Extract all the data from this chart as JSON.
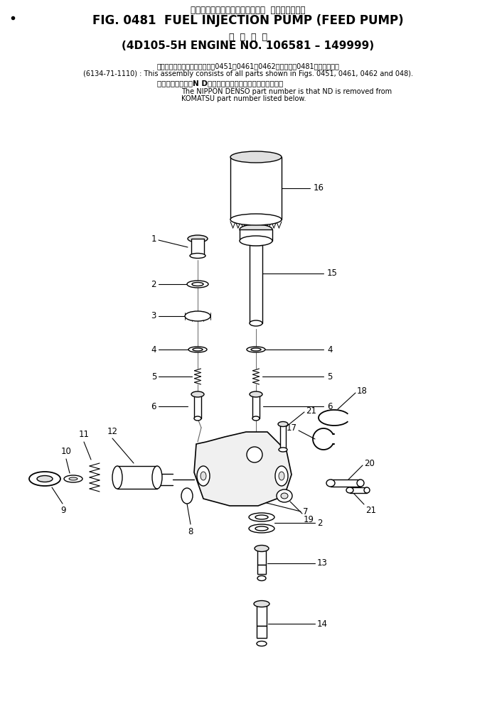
{
  "title_jp": "フェエルインジェクションボンプ  フィードボンプ",
  "title_en": "FIG. 0481  FUEL INJECTION PUMP (FEED PUMP)",
  "subtitle_jp": "適  用  号  機",
  "subtitle_en": "(4D105-5H ENGINE NO. 106581 – 149999)",
  "note1_jp": "このアセンブリの構成部品は第0451，0461，0462図および第0481図を見ます。",
  "note1_en": "(6134-71-1110) : This assembly consists of all parts shown in Figs. 0451, 0461, 0462 and 048).",
  "note2_jp": "品番のメーカ記号N Dを除いたものが日本電装の品番です。",
  "note2_en1": "The NIPPON DENSO part number is that ND is removed from",
  "note2_en2": "KOMATSU part number listed below.",
  "bg_color": "#ffffff",
  "fg_color": "#000000"
}
